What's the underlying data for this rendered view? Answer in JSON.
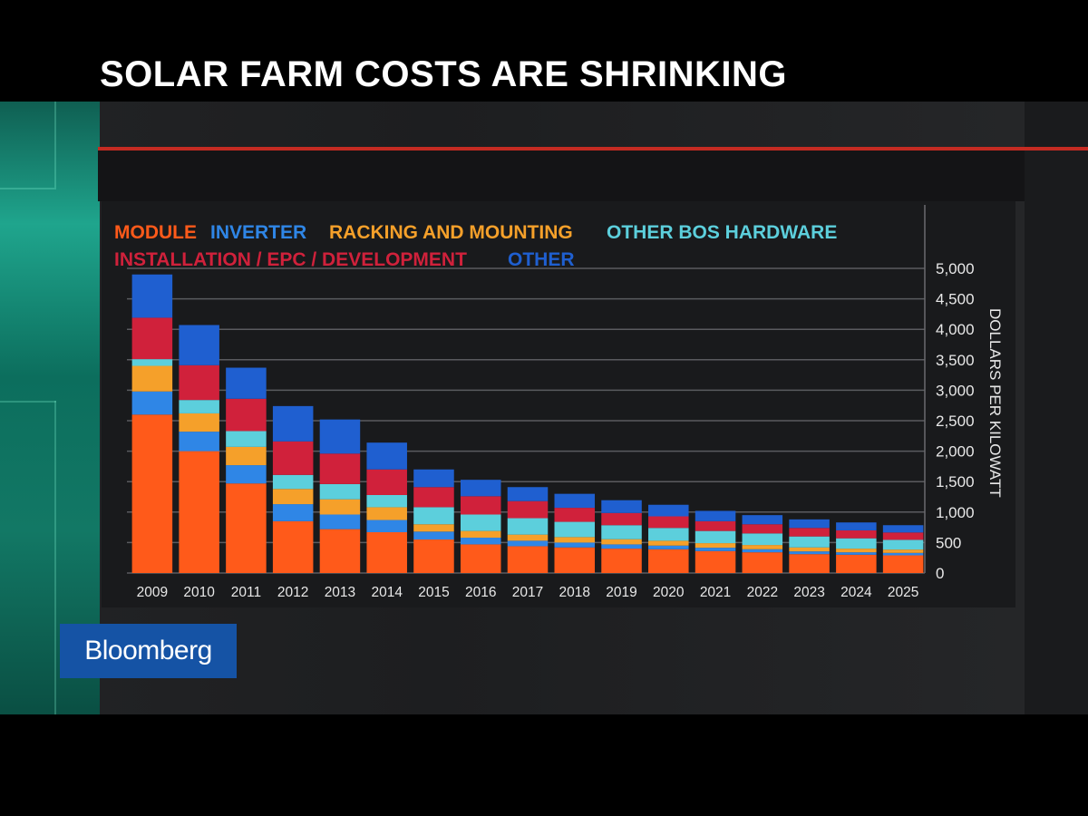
{
  "title": "SOLAR FARM COSTS ARE SHRINKING",
  "brand": "Bloomberg",
  "legend": {
    "module": "MODULE",
    "inverter": "INVERTER",
    "racking": "RACKING AND MOUNTING",
    "bos": "OTHER BOS HARDWARE",
    "installation": "INSTALLATION / EPC / DEVELOPMENT",
    "other": "OTHER"
  },
  "chart_data": {
    "type": "bar",
    "stacked": true,
    "title": "SOLAR FARM COSTS ARE SHRINKING",
    "xlabel": "",
    "ylabel": "DOLLARS PER KILOWATT",
    "ylim": [
      0,
      5000
    ],
    "yticks": [
      "0",
      "500",
      "1,000",
      "1,500",
      "2,000",
      "2,500",
      "3,000",
      "3,500",
      "4,000",
      "4,500",
      "5,000"
    ],
    "y_axis_position": "right",
    "legend_position": "top-left",
    "grid": true,
    "categories": [
      "2009",
      "2010",
      "2011",
      "2012",
      "2013",
      "2014",
      "2015",
      "2016",
      "2017",
      "2018",
      "2019",
      "2020",
      "2021",
      "2022",
      "2023",
      "2024",
      "2025"
    ],
    "series": [
      {
        "key": "module",
        "name": "MODULE",
        "color": "#ff5a1a",
        "values": [
          2600,
          2000,
          1470,
          850,
          720,
          670,
          550,
          470,
          440,
          420,
          400,
          390,
          360,
          340,
          310,
          300,
          290
        ]
      },
      {
        "key": "inverter",
        "name": "INVERTER",
        "color": "#2f86e6",
        "values": [
          380,
          320,
          300,
          280,
          240,
          200,
          130,
          110,
          90,
          80,
          70,
          60,
          55,
          50,
          45,
          40,
          40
        ]
      },
      {
        "key": "racking",
        "name": "RACKING AND MOUNTING",
        "color": "#f5a02a",
        "values": [
          420,
          300,
          300,
          250,
          250,
          210,
          120,
          110,
          100,
          90,
          85,
          80,
          75,
          70,
          65,
          60,
          55
        ]
      },
      {
        "key": "bos",
        "name": "OTHER BOS HARDWARE",
        "color": "#5ccfdc",
        "values": [
          110,
          220,
          260,
          230,
          250,
          200,
          280,
          270,
          270,
          250,
          230,
          210,
          200,
          190,
          180,
          170,
          160
        ]
      },
      {
        "key": "installation",
        "name": "INSTALLATION / EPC / DEVELOPMENT",
        "color": "#d0213b",
        "values": [
          680,
          570,
          530,
          550,
          500,
          420,
          330,
          300,
          280,
          230,
          200,
          190,
          160,
          150,
          140,
          130,
          120
        ]
      },
      {
        "key": "other",
        "name": "OTHER",
        "color": "#1f5fd0",
        "values": [
          710,
          660,
          510,
          580,
          560,
          440,
          290,
          270,
          230,
          230,
          210,
          190,
          170,
          150,
          140,
          130,
          120
        ]
      }
    ]
  }
}
